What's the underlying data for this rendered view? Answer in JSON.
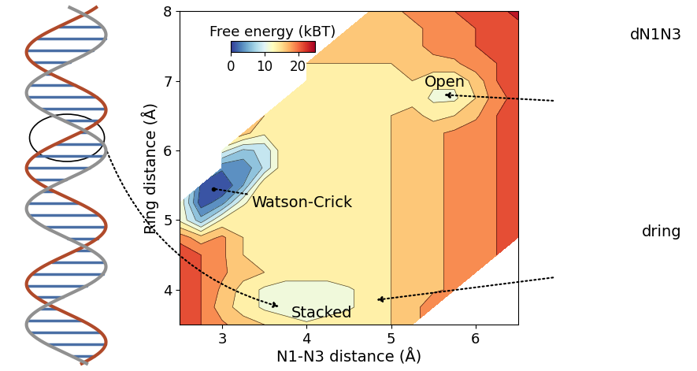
{
  "chart_data": {
    "type": "contour",
    "xlabel": "N1-N3 distance (Å)",
    "ylabel": "Ring distance (Å)",
    "x": [
      2.5,
      2.75,
      3.0,
      3.25,
      3.5,
      3.75,
      4.0,
      4.25,
      4.5,
      4.75,
      5.0,
      5.25,
      5.5,
      5.75,
      6.0,
      6.25,
      6.5
    ],
    "y": [
      3.5,
      3.75,
      4.0,
      4.25,
      4.5,
      4.75,
      5.0,
      5.25,
      5.5,
      5.75,
      6.0,
      6.25,
      6.5,
      6.75,
      7.0,
      7.25,
      7.5,
      7.75,
      8.0
    ],
    "cells": [
      [
        22,
        20,
        18,
        16,
        15,
        14,
        13,
        14,
        15,
        15,
        15,
        16,
        null,
        null,
        null,
        null,
        null
      ],
      [
        22,
        20,
        16,
        14,
        12,
        11,
        10,
        11,
        12,
        14,
        15,
        16,
        20,
        null,
        null,
        null,
        null
      ],
      [
        22,
        20,
        17,
        14,
        12,
        11,
        11,
        11,
        12,
        14,
        15,
        16,
        17,
        18,
        null,
        null,
        null
      ],
      [
        22,
        20,
        18,
        16,
        15,
        14,
        14,
        14,
        15,
        15,
        15,
        16,
        17,
        18,
        19,
        null,
        null
      ],
      [
        22,
        20,
        18,
        15,
        15,
        15,
        15,
        15,
        15,
        15,
        15,
        16,
        17,
        18,
        19,
        20,
        null
      ],
      [
        19,
        16,
        18,
        15,
        15,
        15,
        15,
        15,
        15,
        15,
        15,
        16,
        17,
        18,
        19,
        20,
        21
      ],
      [
        12,
        6,
        13,
        15,
        15,
        15,
        15,
        15,
        15,
        15,
        15,
        16,
        17,
        18,
        19,
        20,
        21
      ],
      [
        12,
        1,
        4,
        12,
        15,
        15,
        15,
        15,
        15,
        15,
        15,
        16,
        17,
        18,
        19,
        20,
        21
      ],
      [
        null,
        2,
        0,
        5,
        15,
        15,
        15,
        15,
        15,
        15,
        15,
        16,
        17,
        18,
        19,
        20,
        21
      ],
      [
        null,
        null,
        3,
        3,
        8,
        15,
        15,
        15,
        15,
        15,
        15,
        16,
        17,
        18,
        19,
        20,
        21
      ],
      [
        null,
        null,
        11,
        7,
        8,
        15,
        15,
        15,
        15,
        15,
        15,
        16,
        17,
        18,
        19,
        20,
        21
      ],
      [
        null,
        null,
        null,
        16,
        13,
        15,
        15,
        15,
        15,
        15,
        15,
        16,
        17,
        18,
        19,
        20,
        21
      ],
      [
        null,
        null,
        null,
        null,
        15,
        15,
        15,
        15,
        15,
        15,
        15,
        16,
        14,
        15,
        17,
        20,
        21
      ],
      [
        null,
        null,
        null,
        null,
        null,
        15,
        15,
        15,
        15,
        15,
        15,
        14,
        12,
        12,
        15,
        19,
        21
      ],
      [
        null,
        null,
        null,
        null,
        null,
        null,
        15,
        15,
        15,
        15,
        15,
        15,
        13,
        13,
        16,
        20,
        21
      ],
      [
        null,
        null,
        null,
        null,
        null,
        null,
        15,
        15,
        15,
        15,
        15,
        16,
        17,
        17,
        19,
        20,
        21
      ],
      [
        null,
        null,
        null,
        null,
        null,
        null,
        null,
        16,
        16,
        16,
        16,
        17,
        18,
        19,
        20,
        21,
        22
      ],
      [
        null,
        null,
        null,
        null,
        null,
        null,
        null,
        null,
        16,
        16,
        16,
        17,
        18,
        19,
        20,
        21,
        22
      ],
      [
        null,
        null,
        null,
        null,
        null,
        null,
        null,
        null,
        null,
        17,
        17,
        18,
        19,
        20,
        21,
        22,
        23
      ]
    ],
    "xlim": [
      2.5,
      6.5
    ],
    "xticks": [
      3,
      4,
      5,
      6
    ],
    "ylim": [
      3.5,
      8
    ],
    "yticks": [
      4,
      5,
      6,
      7,
      8
    ],
    "colorbar_label": "Free energy (kBT)",
    "colorbar_range": [
      0,
      25
    ],
    "colorbar_ticks": [
      0,
      10,
      20
    ],
    "annotations": [
      {
        "text": "Watson-Crick",
        "x": 2.9,
        "y": 5.45
      },
      {
        "text": "Open",
        "x": 5.6,
        "y": 6.8
      },
      {
        "text": "Stacked",
        "x": 3.7,
        "y": 3.75
      }
    ],
    "callouts": [
      {
        "text": "dN1N3",
        "x": 5.6,
        "y": 6.8
      },
      {
        "text": "dring",
        "x": 4.8,
        "y": 3.85
      }
    ]
  }
}
